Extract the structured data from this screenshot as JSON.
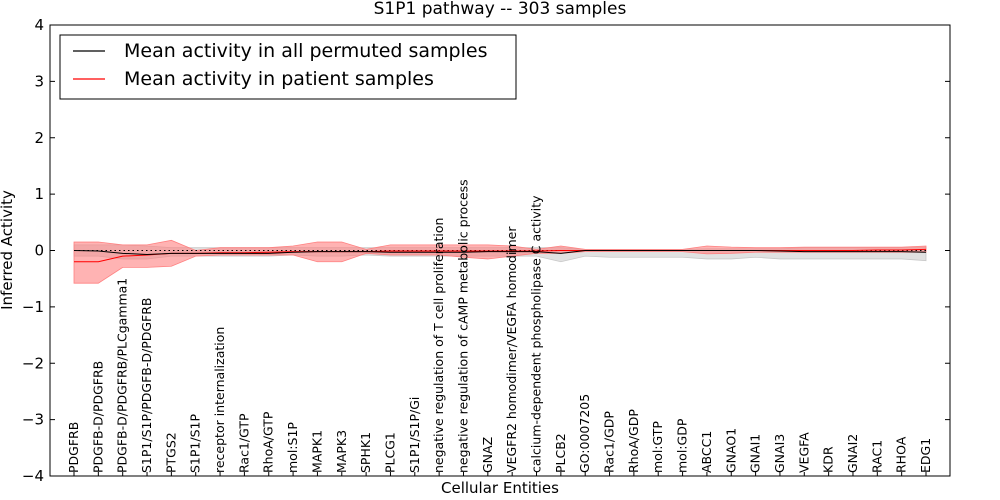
{
  "chart_data": {
    "type": "line",
    "title": "S1P1 pathway -- 303 samples",
    "xlabel": "Cellular Entities",
    "ylabel": "Inferred Activity",
    "ylim": [
      -4,
      4
    ],
    "yticks": [
      4,
      3,
      2,
      1,
      0,
      -1,
      -2,
      -3,
      -4
    ],
    "ytick_labels": [
      "4",
      "3",
      "2",
      "1",
      "0",
      "−1",
      "−2",
      "−3",
      "−4"
    ],
    "legend_position": "top-left",
    "colors": {
      "permuted": "#000000",
      "patient": "#ff0000",
      "permuted_band": "#c8c8c8",
      "patient_band": "#ff8080",
      "zero_line": "#000000"
    },
    "categories": [
      "PDGFRB",
      "PDGFB-D/PDGFRB",
      "PDGFB-D/PDGFRB/PLCgamma1",
      "S1P1/S1P/PDGFB-D/PDGFRB",
      "PTGS2",
      "S1P1/S1P",
      "receptor internalization",
      "Rac1/GTP",
      "RhoA/GTP",
      "mol:S1P",
      "MAPK1",
      "MAPK3",
      "SPHK1",
      "PLCG1",
      "S1P1/S1P/Gi",
      "negative regulation of T cell proliferation",
      "negative regulation of cAMP metabolic process",
      "GNAZ",
      "VEGFR2 homodimer/VEGFA homodimer",
      "calcium-dependent phospholipase C activity",
      "PLCB2",
      "GO:0007205",
      "Rac1/GDP",
      "RhoA/GDP",
      "mol:GTP",
      "mol:GDP",
      "ABCC1",
      "GNAO1",
      "GNAI1",
      "GNAI3",
      "VEGFA",
      "KDR",
      "GNAI2",
      "RAC1",
      "RHOA",
      "EDG1"
    ],
    "series": [
      {
        "name": "Mean activity in all permuted samples",
        "values": [
          0.0,
          -0.01,
          -0.05,
          -0.07,
          -0.05,
          -0.05,
          -0.05,
          -0.05,
          -0.05,
          -0.03,
          -0.02,
          -0.02,
          -0.02,
          -0.03,
          -0.03,
          -0.03,
          -0.03,
          -0.02,
          -0.02,
          -0.02,
          -0.05,
          0.0,
          0.0,
          0.0,
          0.0,
          0.0,
          0.0,
          0.0,
          0.0,
          -0.01,
          -0.02,
          -0.02,
          -0.02,
          -0.02,
          -0.02,
          -0.03
        ],
        "lower": [
          -0.1,
          -0.1,
          -0.15,
          -0.15,
          -0.1,
          -0.1,
          -0.1,
          -0.1,
          -0.1,
          -0.08,
          -0.1,
          -0.1,
          -0.08,
          -0.1,
          -0.1,
          -0.1,
          -0.1,
          -0.1,
          -0.1,
          -0.1,
          -0.2,
          -0.1,
          -0.12,
          -0.12,
          -0.12,
          -0.12,
          -0.15,
          -0.15,
          -0.12,
          -0.15,
          -0.15,
          -0.15,
          -0.15,
          -0.15,
          -0.15,
          -0.18
        ],
        "upper": [
          0.1,
          0.1,
          0.1,
          0.08,
          0.05,
          0.05,
          0.05,
          0.05,
          0.05,
          0.05,
          0.05,
          0.05,
          0.05,
          0.05,
          0.05,
          0.05,
          0.05,
          0.05,
          0.05,
          0.05,
          0.05,
          0.02,
          0.02,
          0.02,
          0.02,
          0.02,
          0.03,
          0.03,
          0.03,
          0.03,
          0.05,
          0.05,
          0.05,
          0.05,
          0.05,
          0.06
        ]
      },
      {
        "name": "Mean activity in patient samples",
        "values": [
          -0.2,
          -0.2,
          -0.1,
          -0.08,
          -0.05,
          -0.05,
          -0.04,
          -0.04,
          -0.03,
          -0.02,
          -0.02,
          -0.02,
          -0.02,
          -0.01,
          -0.01,
          -0.01,
          -0.01,
          -0.01,
          -0.01,
          -0.01,
          0.0,
          0.0,
          0.0,
          0.0,
          0.0,
          0.0,
          0.0,
          0.0,
          0.0,
          0.0,
          0.0,
          0.0,
          0.0,
          0.01,
          0.01,
          0.02
        ],
        "lower": [
          -0.58,
          -0.58,
          -0.3,
          -0.3,
          -0.28,
          -0.1,
          -0.08,
          -0.08,
          -0.08,
          -0.08,
          -0.2,
          -0.2,
          -0.05,
          -0.08,
          -0.08,
          -0.08,
          -0.12,
          -0.15,
          -0.1,
          -0.05,
          -0.05,
          -0.02,
          -0.02,
          -0.02,
          -0.02,
          -0.02,
          -0.06,
          -0.05,
          -0.03,
          -0.03,
          -0.03,
          -0.03,
          -0.03,
          -0.03,
          -0.03,
          -0.03
        ],
        "upper": [
          0.15,
          0.15,
          0.1,
          0.1,
          0.18,
          0.0,
          0.05,
          0.05,
          0.05,
          0.08,
          0.15,
          0.15,
          0.02,
          0.1,
          0.1,
          0.1,
          0.1,
          0.1,
          0.08,
          0.02,
          0.08,
          0.02,
          0.02,
          0.02,
          0.02,
          0.02,
          0.08,
          0.06,
          0.05,
          0.05,
          0.06,
          0.06,
          0.06,
          0.06,
          0.06,
          0.08
        ]
      }
    ]
  }
}
